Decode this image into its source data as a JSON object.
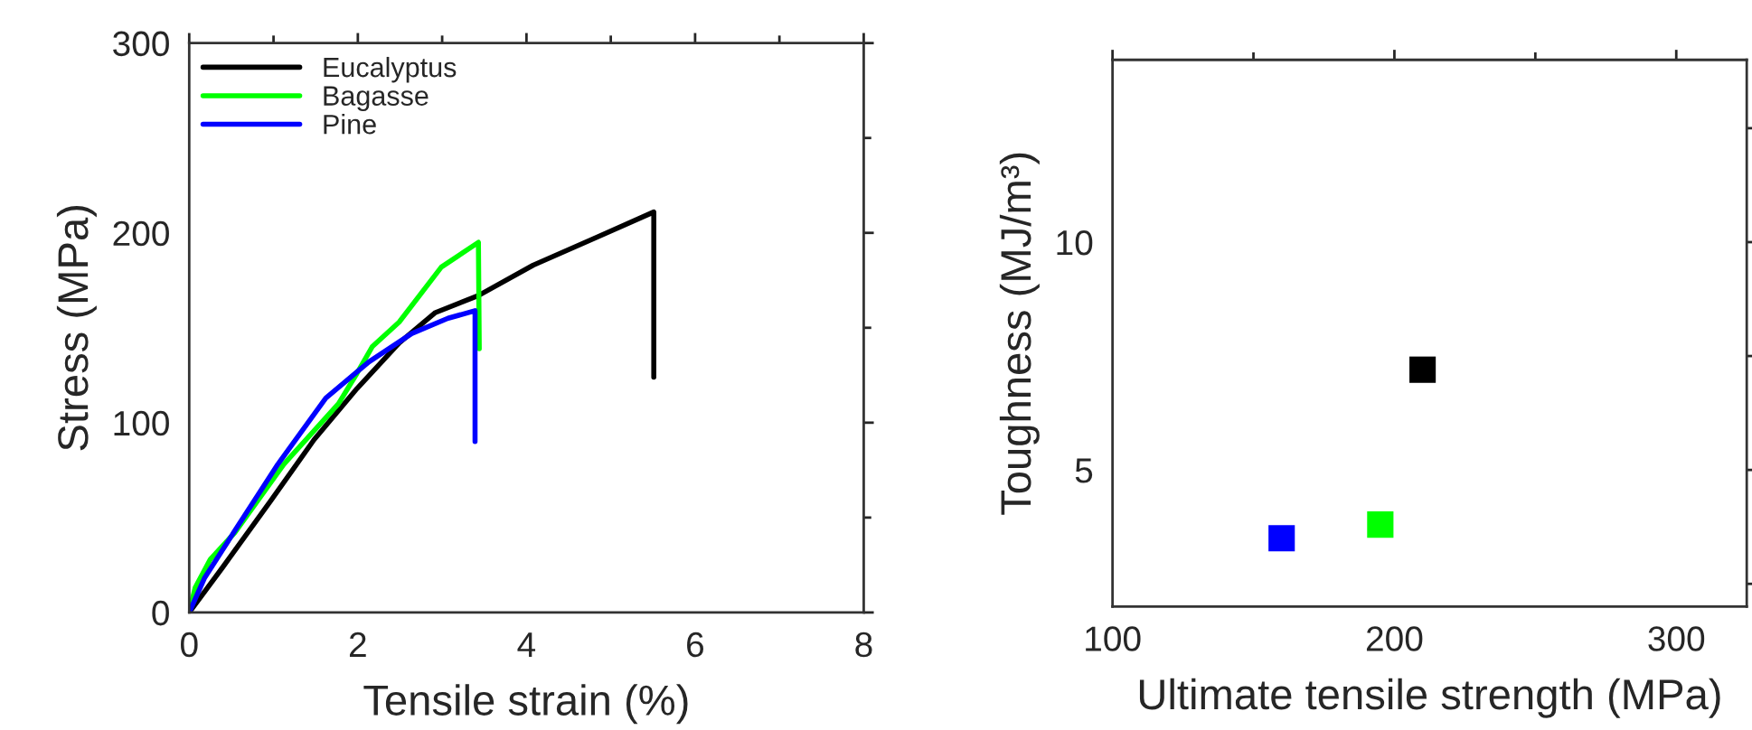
{
  "chart_data": [
    {
      "type": "line",
      "xlabel": "Tensile strain (%)",
      "ylabel": "Stress (MPa)",
      "xlim": [
        0,
        8
      ],
      "xticks": [
        0,
        2,
        4,
        6,
        8
      ],
      "ylim": [
        0,
        300
      ],
      "yticks": [
        0,
        100,
        200,
        300
      ],
      "grid": false,
      "legend": "top left",
      "marker": "none",
      "line_style": "solid",
      "series": [
        {
          "name": "Eucalyptus",
          "color": "#000000",
          "x": [
            0,
            0.4,
            0.97,
            1.48,
            1.99,
            2.49,
            2.92,
            3.43,
            4.08,
            4.8,
            5.51,
            5.51
          ],
          "values": [
            0,
            24,
            59,
            91,
            118,
            142,
            158,
            167,
            183,
            197,
            211,
            124
          ]
        },
        {
          "name": "Bagasse",
          "color": "#00ff00",
          "x": [
            0,
            0.07,
            0.25,
            0.54,
            1.12,
            1.77,
            1.99,
            2.17,
            2.49,
            2.99,
            3.43,
            3.44
          ],
          "values": [
            0,
            13,
            28,
            42,
            78,
            110,
            126,
            140,
            153,
            182,
            195,
            139
          ]
        },
        {
          "name": "Pine",
          "color": "#0000ff",
          "x": [
            0,
            0.18,
            0.54,
            1.05,
            1.62,
            2.13,
            2.64,
            3.07,
            3.39,
            3.39
          ],
          "values": [
            0,
            18,
            43,
            78,
            113,
            132,
            147,
            155,
            159,
            90
          ]
        }
      ]
    },
    {
      "type": "scatter",
      "xlabel": "Ultimate tensile strength (MPa)",
      "ylabel": "Toughness (MJ/m³)",
      "xlim": [
        100,
        325
      ],
      "xticks": [
        100,
        200,
        300
      ],
      "ylim": [
        2,
        14
      ],
      "yticks": [
        5,
        10
      ],
      "grid": false,
      "marker": "square",
      "series": [
        {
          "x": [
            210,
            195,
            160
          ],
          "values": [
            7.2,
            3.8,
            3.5
          ],
          "colors": [
            "#000000",
            "#00ff00",
            "#0000ff"
          ]
        }
      ]
    }
  ]
}
